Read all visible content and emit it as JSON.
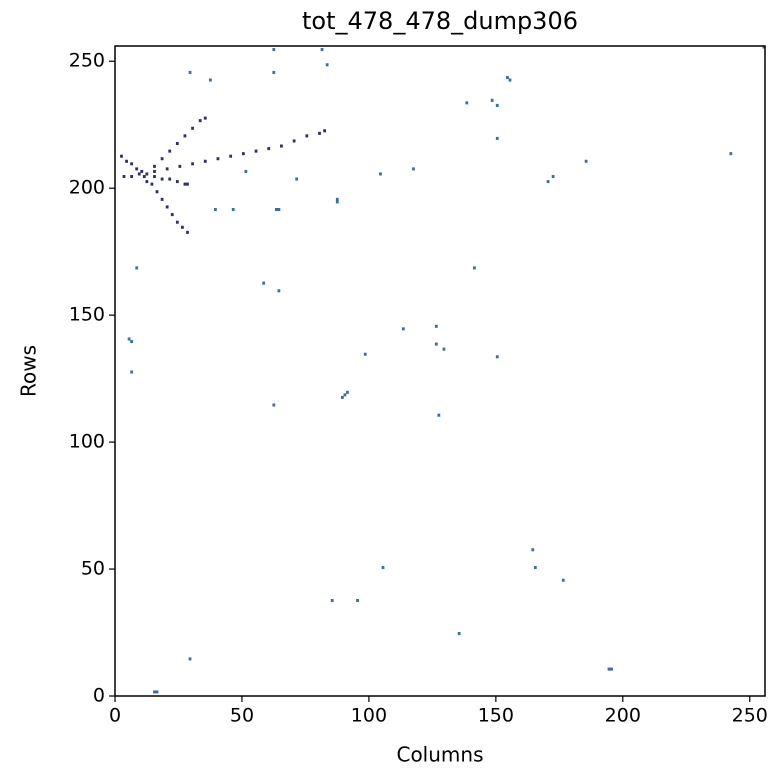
{
  "chart_data": {
    "type": "scatter",
    "title": "tot_478_478_dump306",
    "x_label": "Columns",
    "y_label": "Rows",
    "xlim": [
      0,
      256
    ],
    "ylim": [
      0,
      256
    ],
    "xticks": [
      0,
      50,
      100,
      150,
      200,
      250
    ],
    "yticks": [
      0,
      50,
      100,
      150,
      200,
      250
    ],
    "series": [
      {
        "color": "#2e2f72",
        "x": [
          15,
          20,
          25,
          30,
          35,
          40,
          45,
          50,
          55,
          60,
          65,
          70,
          75,
          80,
          82,
          15,
          18,
          21,
          24,
          27,
          30,
          33,
          35,
          2,
          4,
          6,
          8,
          10,
          14,
          16,
          18,
          20,
          22,
          24,
          26,
          28,
          15,
          18,
          21,
          24,
          27,
          28,
          3,
          6,
          9,
          12,
          12,
          11
        ],
        "y": [
          206,
          207,
          208,
          209,
          210,
          211,
          212,
          213,
          214,
          215,
          216,
          218,
          220,
          221,
          222,
          208,
          211,
          214,
          217,
          220,
          223,
          226,
          227,
          212,
          210,
          209,
          207,
          206,
          201,
          198,
          195,
          192,
          189,
          186,
          184,
          182,
          204,
          203,
          203,
          202,
          201,
          201,
          204,
          204,
          205,
          205,
          202,
          204
        ]
      },
      {
        "color": "#3a6ea5",
        "x": [
          62,
          81,
          83,
          29,
          37,
          62,
          138,
          148,
          150,
          154,
          155,
          150,
          117,
          104,
          185,
          242,
          255,
          172,
          170,
          71,
          51,
          87,
          87,
          39,
          46,
          63,
          64,
          8,
          141,
          58,
          64,
          113,
          126,
          126,
          129,
          98,
          150,
          5,
          6,
          6,
          91,
          90,
          89,
          62,
          127,
          164,
          165,
          105,
          176,
          85,
          95,
          135,
          29,
          194,
          195,
          15,
          16
        ],
        "y": [
          254,
          254,
          248,
          245,
          242,
          245,
          233,
          234,
          232,
          243,
          242,
          219,
          207,
          205,
          210,
          213,
          255,
          204,
          202,
          203,
          206,
          195,
          194,
          191,
          191,
          191,
          191,
          168,
          168,
          162,
          159,
          144,
          145,
          138,
          136,
          134,
          133,
          140,
          139,
          127,
          119,
          118,
          117,
          114,
          110,
          57,
          50,
          50,
          45,
          37,
          37,
          24,
          14,
          10,
          10,
          1,
          1
        ]
      }
    ]
  }
}
